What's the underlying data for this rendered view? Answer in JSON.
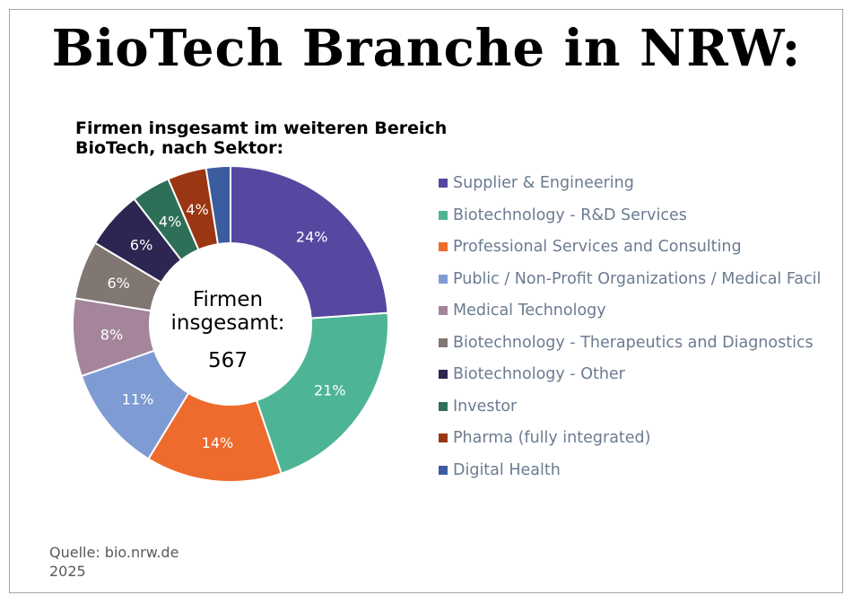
{
  "title": "BioTech Branche in NRW:",
  "subtitle_lines": [
    "Firmen insgesamt im weiteren Bereich",
    "BioTech, nach Sektor:"
  ],
  "center_label": [
    "Firmen",
    "insgesamt:"
  ],
  "center_value": "567",
  "source_lines": [
    "Quelle: bio.nrw.de",
    "2025"
  ],
  "chart_data": {
    "type": "pie",
    "donut": true,
    "legend_position": "right",
    "categories": [
      "Supplier & Engineering",
      "Biotechnology - R&D Services",
      "Professional Services and Consulting",
      "Public / Non-Profit Organizations / Medical Facil",
      "Medical Technology",
      "Biotechnology - Therapeutics and Diagnostics",
      "Biotechnology - Other",
      "Investor",
      "Pharma (fully integrated)",
      "Digital Health"
    ],
    "values": [
      24,
      21,
      14,
      11,
      8,
      6,
      6,
      4,
      4,
      2.5
    ],
    "data_labels": [
      "24%",
      "21%",
      "14%",
      "11%",
      "8%",
      "6%",
      "6%",
      "4%",
      "4%",
      ""
    ],
    "colors": [
      "#5548a0",
      "#4db596",
      "#ed6b2d",
      "#7f9bd3",
      "#a5859b",
      "#807672",
      "#2d2652",
      "#2e6f57",
      "#9b3612",
      "#3b5c9e"
    ]
  }
}
